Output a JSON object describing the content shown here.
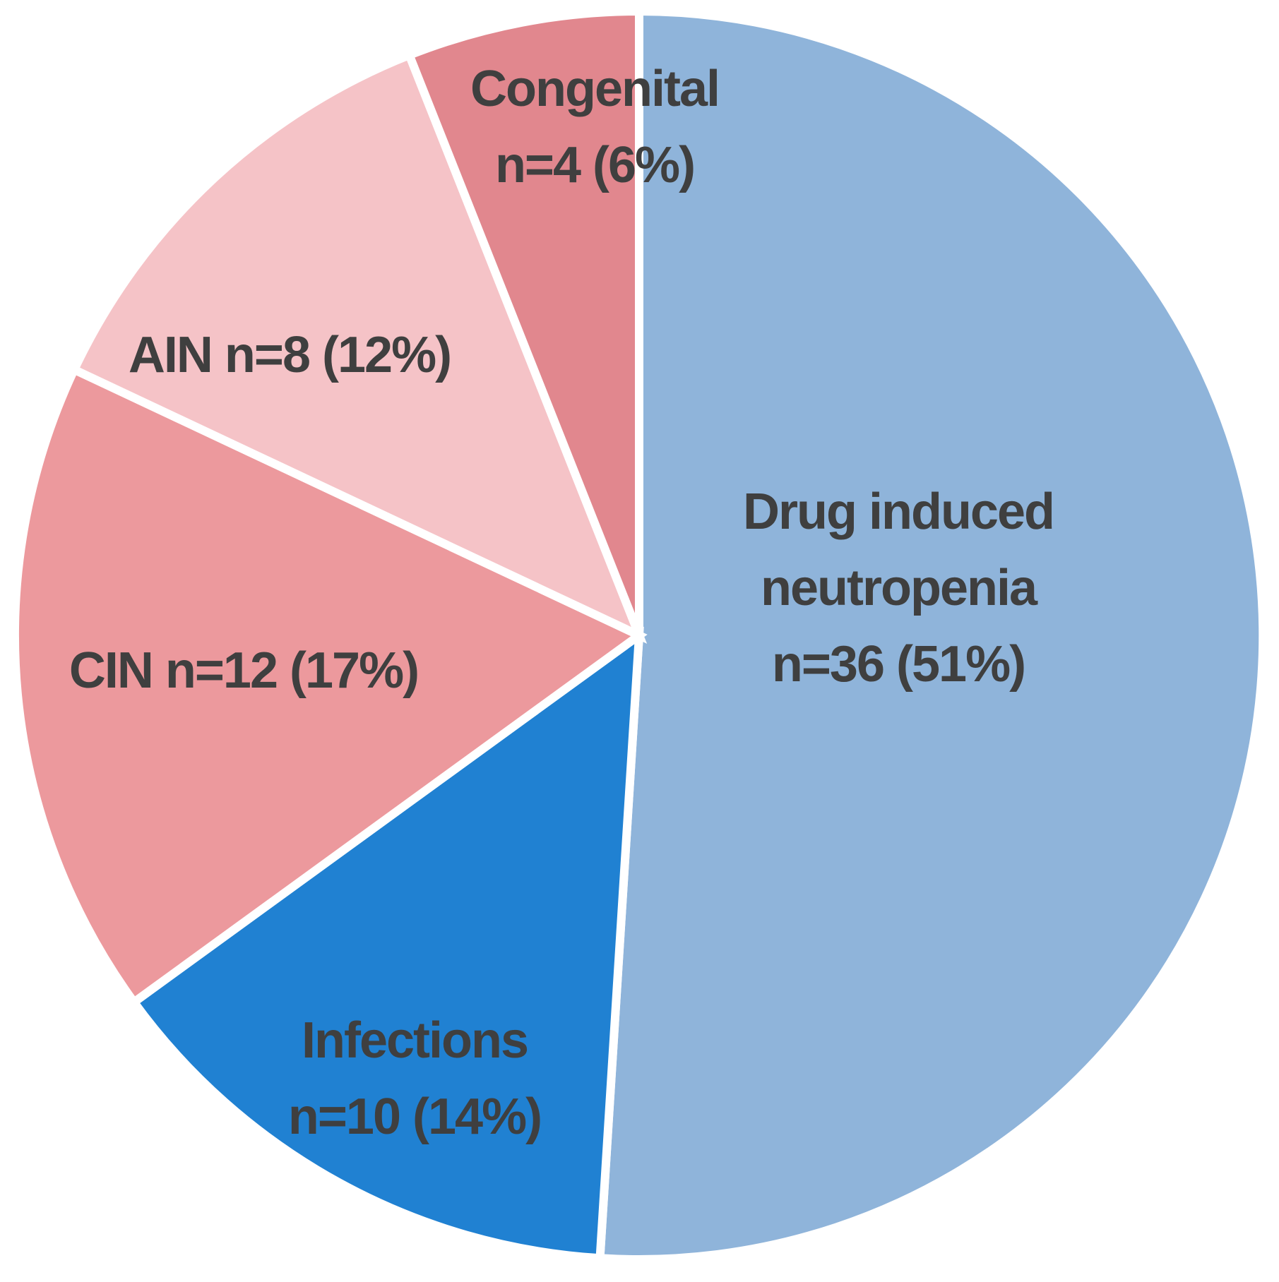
{
  "chart_data": {
    "type": "pie",
    "title": "",
    "direction": "clockwise",
    "start_position": "top",
    "separator_color": "#FFFFFF",
    "label_color": "#3F3F3F",
    "background_color": "#FFFFFF",
    "slices": [
      {
        "id": "drug-induced-neutropenia",
        "label": "Drug induced neutropenia",
        "n": 36,
        "percent": 51,
        "color": "#8FB4DA",
        "label_lines": [
          "Drug induced",
          "neutropenia",
          "n=36 (51%)"
        ]
      },
      {
        "id": "infections",
        "label": "Infections",
        "n": 10,
        "percent": 14,
        "color": "#2081D2",
        "label_lines": [
          "Infections",
          "n=10 (14%)"
        ]
      },
      {
        "id": "cin",
        "label": "CIN",
        "n": 12,
        "percent": 17,
        "color": "#EC999D",
        "label_lines": [
          "CIN n=12 (17%)"
        ]
      },
      {
        "id": "ain",
        "label": "AIN",
        "n": 8,
        "percent": 12,
        "color": "#F5C3C7",
        "label_lines": [
          "AIN n=8 (12%)"
        ]
      },
      {
        "id": "congenital",
        "label": "Congenital",
        "n": 4,
        "percent": 6,
        "color": "#E1878E",
        "label_lines": [
          "Congenital",
          "n=4 (6%)"
        ]
      }
    ]
  }
}
